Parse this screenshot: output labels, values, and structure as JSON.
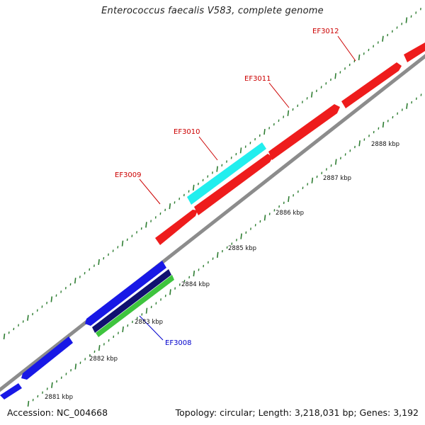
{
  "title": "Enterococcus faecalis V583, complete genome",
  "footer": {
    "accession": "Accession: NC_004668",
    "summary": "Topology: circular; Length: 3,218,031 bp; Genes: 3,192"
  },
  "colors": {
    "backbone": "#8c8c8c",
    "tick": "#2e7d32",
    "forward_gene": "#ee1c1c",
    "reverse_gene": "#1818e6",
    "highlight_gene": "#22eeee",
    "dark_gene": "#101070",
    "rna_gene": "#3ec43e",
    "label_red": "#cc0000",
    "label_blue": "#0000cc"
  },
  "scale_labels": [
    "2881 kbp",
    "2882 kbp",
    "2883 kbp",
    "2884 kbp",
    "2885 kbp",
    "2886 kbp",
    "2887 kbp",
    "2888 kbp"
  ],
  "gene_labels": [
    {
      "text": "EF3008",
      "color": "label_blue"
    },
    {
      "text": "EF3009",
      "color": "label_red"
    },
    {
      "text": "EF3010",
      "color": "label_red"
    },
    {
      "text": "EF3011",
      "color": "label_red"
    },
    {
      "text": "EF3012",
      "color": "label_red"
    }
  ]
}
